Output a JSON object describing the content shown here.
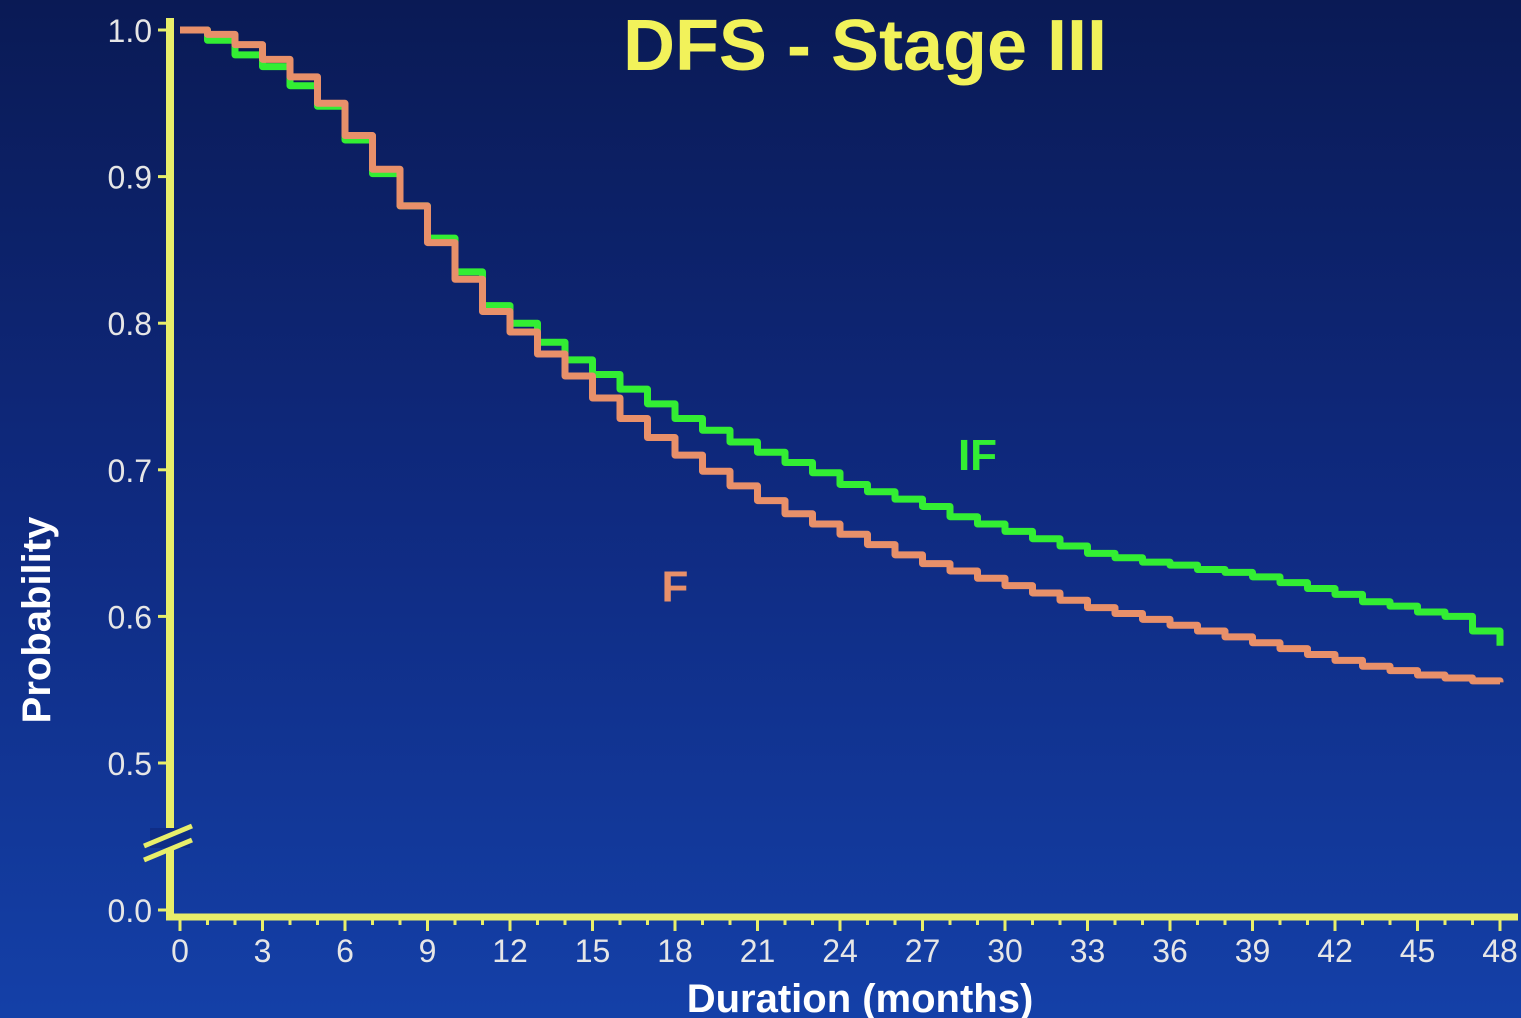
{
  "chart_data": {
    "type": "line",
    "title": "DFS - Stage III",
    "xlabel": "Duration (months)",
    "ylabel": "Probability",
    "xlim": [
      0,
      48
    ],
    "ylim": [
      0.0,
      1.0
    ],
    "axis_break": "between 0.0 and 0.5 on the y-axis",
    "x_ticks": [
      0,
      3,
      6,
      9,
      12,
      15,
      18,
      21,
      24,
      27,
      30,
      33,
      36,
      39,
      42,
      45,
      48
    ],
    "y_ticks": [
      "0.0",
      "0.5",
      "0.6",
      "0.7",
      "0.8",
      "0.9",
      "1.0"
    ],
    "grid": false,
    "colors": {
      "title": "#f2f25a",
      "axis": "#e8ee6a",
      "tick_labels": "#e6e6e6",
      "axis_labels": "#ffffff"
    },
    "series": [
      {
        "name": "IF",
        "color": "#33ee33",
        "x": [
          0,
          1,
          2,
          3,
          4,
          5,
          6,
          7,
          8,
          9,
          10,
          11,
          12,
          13,
          14,
          15,
          16,
          17,
          18,
          19,
          20,
          21,
          22,
          23,
          24,
          25,
          26,
          27,
          28,
          29,
          30,
          31,
          32,
          33,
          34,
          35,
          36,
          37,
          38,
          39,
          40,
          41,
          42,
          43,
          44,
          45,
          46,
          47,
          48
        ],
        "y": [
          1.0,
          0.993,
          0.983,
          0.975,
          0.962,
          0.948,
          0.925,
          0.902,
          0.88,
          0.858,
          0.835,
          0.812,
          0.8,
          0.787,
          0.775,
          0.765,
          0.755,
          0.745,
          0.735,
          0.727,
          0.719,
          0.712,
          0.705,
          0.698,
          0.69,
          0.685,
          0.68,
          0.675,
          0.668,
          0.663,
          0.658,
          0.653,
          0.648,
          0.643,
          0.64,
          0.637,
          0.635,
          0.632,
          0.63,
          0.627,
          0.623,
          0.619,
          0.615,
          0.61,
          0.607,
          0.603,
          0.6,
          0.59,
          0.58
        ]
      },
      {
        "name": "F",
        "color": "#e8906a",
        "x": [
          0,
          1,
          2,
          3,
          4,
          5,
          6,
          7,
          8,
          9,
          10,
          11,
          12,
          13,
          14,
          15,
          16,
          17,
          18,
          19,
          20,
          21,
          22,
          23,
          24,
          25,
          26,
          27,
          28,
          29,
          30,
          31,
          32,
          33,
          34,
          35,
          36,
          37,
          38,
          39,
          40,
          41,
          42,
          43,
          44,
          45,
          46,
          47,
          48
        ],
        "y": [
          1.0,
          0.997,
          0.99,
          0.98,
          0.968,
          0.95,
          0.928,
          0.905,
          0.88,
          0.855,
          0.83,
          0.808,
          0.794,
          0.779,
          0.764,
          0.749,
          0.735,
          0.722,
          0.71,
          0.699,
          0.689,
          0.679,
          0.67,
          0.663,
          0.656,
          0.649,
          0.642,
          0.636,
          0.631,
          0.626,
          0.621,
          0.616,
          0.611,
          0.606,
          0.602,
          0.598,
          0.594,
          0.59,
          0.586,
          0.582,
          0.578,
          0.574,
          0.57,
          0.566,
          0.563,
          0.56,
          0.558,
          0.556,
          0.555
        ]
      }
    ],
    "annotations": [
      {
        "text": "IF",
        "x": 29,
        "y": 0.7,
        "color": "#33ee33"
      },
      {
        "text": "F",
        "x": 18,
        "y": 0.61,
        "color": "#e8906a"
      }
    ]
  }
}
